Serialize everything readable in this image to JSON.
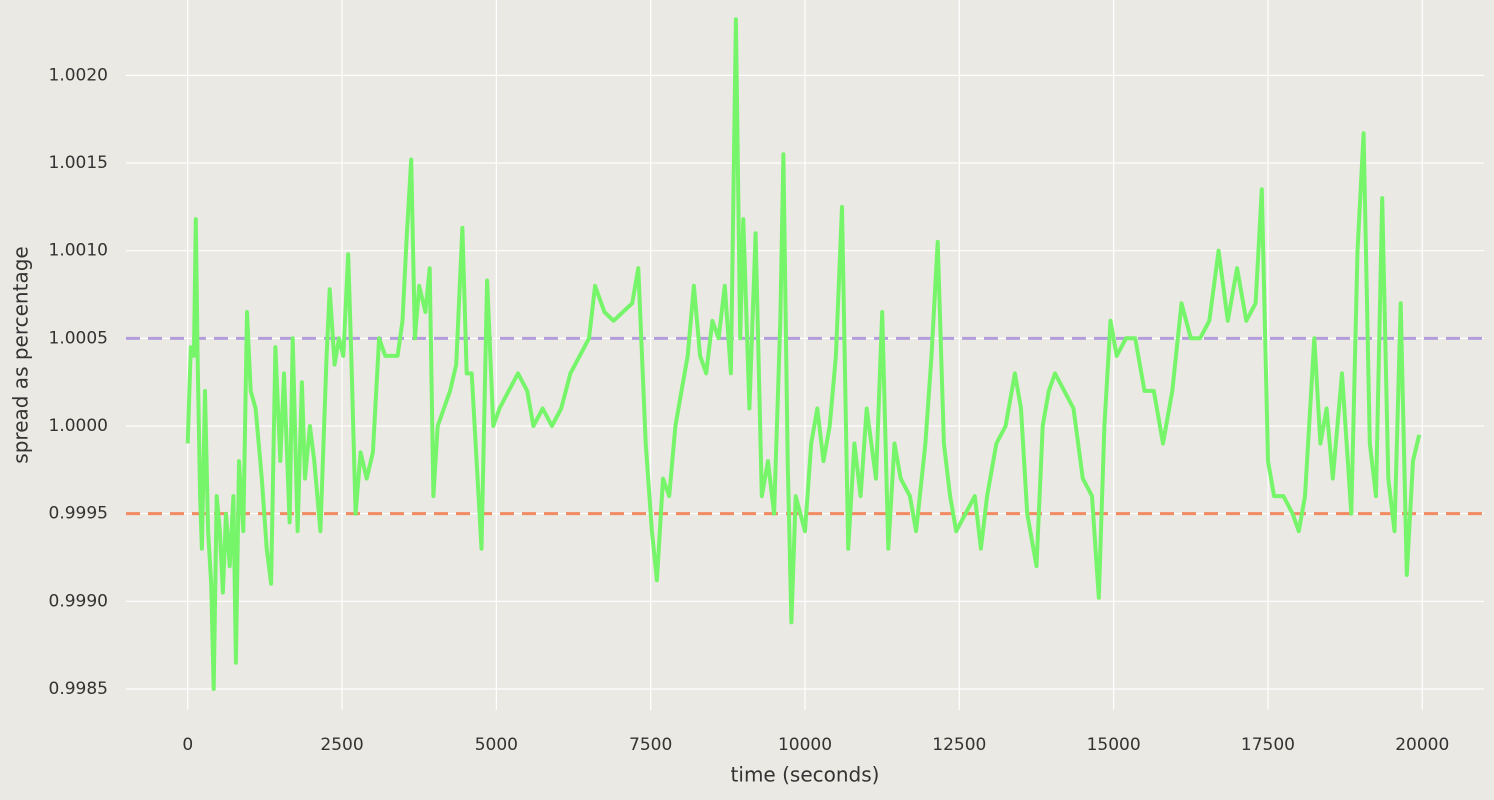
{
  "chart_data": {
    "type": "line",
    "xlabel": "time (seconds)",
    "ylabel": "spread as percentage",
    "x": [
      0,
      50,
      100,
      130,
      160,
      200,
      230,
      280,
      330,
      380,
      420,
      470,
      520,
      570,
      620,
      680,
      740,
      780,
      830,
      900,
      960,
      1020,
      1100,
      1200,
      1280,
      1350,
      1420,
      1500,
      1560,
      1650,
      1700,
      1780,
      1850,
      1900,
      1980,
      2050,
      2150,
      2250,
      2300,
      2380,
      2450,
      2520,
      2600,
      2650,
      2720,
      2800,
      2900,
      3000,
      3100,
      3200,
      3300,
      3400,
      3480,
      3550,
      3620,
      3680,
      3750,
      3850,
      3920,
      3980,
      4050,
      4150,
      4250,
      4350,
      4450,
      4520,
      4600,
      4680,
      4760,
      4850,
      4950,
      5050,
      5200,
      5350,
      5500,
      5600,
      5750,
      5900,
      6050,
      6200,
      6350,
      6500,
      6600,
      6750,
      6900,
      7050,
      7200,
      7300,
      7420,
      7520,
      7600,
      7700,
      7800,
      7900,
      8000,
      8100,
      8200,
      8300,
      8400,
      8500,
      8600,
      8700,
      8800,
      8880,
      8950,
      9000,
      9100,
      9200,
      9300,
      9400,
      9500,
      9600,
      9650,
      9720,
      9780,
      9850,
      10000,
      10100,
      10200,
      10300,
      10400,
      10500,
      10600,
      10700,
      10800,
      10900,
      11000,
      11150,
      11250,
      11350,
      11450,
      11550,
      11700,
      11800,
      11950,
      12050,
      12150,
      12250,
      12350,
      12450,
      12600,
      12750,
      12850,
      12950,
      13100,
      13250,
      13400,
      13500,
      13600,
      13750,
      13850,
      13950,
      14050,
      14200,
      14350,
      14500,
      14650,
      14760,
      14850,
      14950,
      15050,
      15200,
      15350,
      15500,
      15650,
      15800,
      15950,
      16100,
      16250,
      16400,
      16550,
      16700,
      16850,
      17000,
      17150,
      17300,
      17400,
      17500,
      17600,
      17750,
      17900,
      18000,
      18100,
      18250,
      18350,
      18450,
      18550,
      18700,
      18850,
      18950,
      19050,
      19150,
      19250,
      19350,
      19450,
      19550,
      19650,
      19750,
      19850,
      19950
    ],
    "series": [
      {
        "color": "#77f56a",
        "values": [
          0.9999,
          1.00045,
          1.0004,
          1.00118,
          1.0004,
          0.9996,
          0.9993,
          1.0002,
          0.9994,
          0.9991,
          0.9985,
          0.9996,
          0.9994,
          0.99905,
          0.9995,
          0.9992,
          0.9996,
          0.99865,
          0.9998,
          0.9994,
          1.00065,
          1.0002,
          1.0001,
          0.9997,
          0.9993,
          0.9991,
          1.00045,
          0.9998,
          1.0003,
          0.99945,
          1.0005,
          0.9994,
          1.00025,
          0.9997,
          1.0,
          0.9998,
          0.9994,
          1.0004,
          1.00078,
          1.00035,
          1.0005,
          1.0004,
          1.00098,
          1.0004,
          0.9995,
          0.99985,
          0.9997,
          0.99985,
          1.0005,
          1.0004,
          1.0004,
          1.0004,
          1.0006,
          1.0011,
          1.00152,
          1.0005,
          1.0008,
          1.00065,
          1.0009,
          0.9996,
          1.0,
          1.0001,
          1.0002,
          1.00035,
          1.00113,
          1.0003,
          1.0003,
          0.9998,
          0.9993,
          1.00083,
          1.0,
          1.0001,
          1.0002,
          1.0003,
          1.0002,
          1.0,
          1.0001,
          1.0,
          1.0001,
          1.0003,
          1.0004,
          1.0005,
          1.0008,
          1.00065,
          1.0006,
          1.00065,
          1.0007,
          1.0009,
          0.9999,
          0.9994,
          0.99912,
          0.9997,
          0.9996,
          1.0,
          1.0002,
          1.0004,
          1.0008,
          1.0004,
          1.0003,
          1.0006,
          1.0005,
          1.0008,
          1.0003,
          1.00232,
          1.0005,
          1.00118,
          1.0001,
          1.0011,
          0.9996,
          0.9998,
          0.9995,
          1.0006,
          1.00155,
          0.9998,
          0.99888,
          0.9996,
          0.9994,
          0.9999,
          1.0001,
          0.9998,
          1.0,
          1.0004,
          1.00125,
          0.9993,
          0.9999,
          0.9996,
          1.0001,
          0.9997,
          1.00065,
          0.9993,
          0.9999,
          0.9997,
          0.9996,
          0.9994,
          0.9999,
          1.0004,
          1.00105,
          0.9999,
          0.9996,
          0.9994,
          0.9995,
          0.9996,
          0.9993,
          0.9996,
          0.9999,
          1.0,
          1.0003,
          1.0001,
          0.9995,
          0.9992,
          1.0,
          1.0002,
          1.0003,
          1.0002,
          1.0001,
          0.9997,
          0.9996,
          0.99902,
          1.0,
          1.0006,
          1.0004,
          1.0005,
          1.0005,
          1.0002,
          1.0002,
          0.9999,
          1.0002,
          1.0007,
          1.0005,
          1.0005,
          1.0006,
          1.001,
          1.0006,
          1.0009,
          1.0006,
          1.0007,
          1.00135,
          0.9998,
          0.9996,
          0.9996,
          0.9995,
          0.9994,
          0.9996,
          1.0005,
          0.9999,
          1.0001,
          0.9997,
          1.0003,
          0.9995,
          1.001,
          1.00167,
          0.9999,
          0.9996,
          1.0013,
          0.9997,
          0.9994,
          1.0007,
          0.99915,
          0.9998,
          0.99995
        ]
      }
    ],
    "hlines": [
      {
        "value": 1.0005,
        "color": "#b39ddb"
      },
      {
        "value": 0.9995,
        "color": "#f28a62"
      }
    ],
    "xlim": [
      -1000,
      21000
    ],
    "xticks": [
      0,
      2500,
      5000,
      7500,
      10000,
      12500,
      15000,
      17500,
      20000
    ],
    "ylim": [
      0.99838,
      1.00243
    ],
    "yticks": [
      0.9985,
      {
        "value": 0.999,
        "label": "0.9990"
      },
      0.9995,
      {
        "value": 1.0,
        "label": "1.0000"
      },
      1.0005,
      {
        "value": 1.001,
        "label": "1.0010"
      },
      1.0015,
      {
        "value": 1.002,
        "label": "1.0020"
      }
    ],
    "grid": true
  }
}
